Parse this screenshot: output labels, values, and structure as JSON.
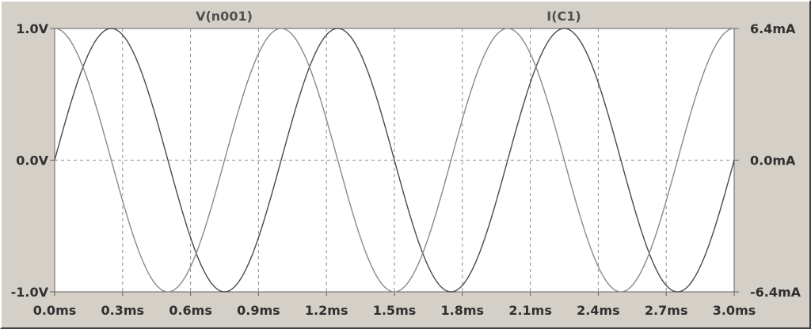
{
  "chart_data": {
    "type": "line",
    "title": "",
    "xlabel": "",
    "ylabel": "",
    "x_ticks": [
      "0.0ms",
      "0.3ms",
      "0.6ms",
      "0.9ms",
      "1.2ms",
      "1.5ms",
      "1.8ms",
      "2.1ms",
      "2.4ms",
      "2.7ms",
      "3.0ms"
    ],
    "y_left_ticks": [
      "1.0V",
      "0.0V",
      "-1.0V"
    ],
    "y_right_ticks": [
      "6.4mA",
      "0.0mA",
      "-6.4mA"
    ],
    "xlim_ms": [
      0,
      3.0
    ],
    "ylim_left_V": [
      -1.0,
      1.0
    ],
    "ylim_right_mA": [
      -6.4,
      6.4
    ],
    "grid": true,
    "series": [
      {
        "name": "V(n001)",
        "axis": "left",
        "color": "#4a4a4a",
        "points": [
          [
            0.0,
            0.0
          ],
          [
            0.125,
            0.71
          ],
          [
            0.25,
            1.0
          ],
          [
            0.375,
            0.71
          ],
          [
            0.5,
            0.0
          ],
          [
            0.625,
            -0.71
          ],
          [
            0.75,
            -1.0
          ],
          [
            0.875,
            -0.71
          ],
          [
            1.0,
            0.0
          ],
          [
            1.125,
            0.71
          ],
          [
            1.25,
            1.0
          ],
          [
            1.375,
            0.71
          ],
          [
            1.5,
            0.0
          ],
          [
            1.625,
            -0.71
          ],
          [
            1.75,
            -1.0
          ],
          [
            1.875,
            -0.71
          ],
          [
            2.0,
            0.0
          ],
          [
            2.125,
            0.71
          ],
          [
            2.25,
            1.0
          ],
          [
            2.375,
            0.71
          ],
          [
            2.5,
            0.0
          ],
          [
            2.625,
            -0.71
          ],
          [
            2.75,
            -1.0
          ],
          [
            2.875,
            -0.71
          ],
          [
            3.0,
            0.0
          ]
        ]
      },
      {
        "name": "I(C1)",
        "axis": "right",
        "color": "#8a8a8a",
        "points": [
          [
            0.0,
            6.4
          ],
          [
            0.125,
            4.53
          ],
          [
            0.25,
            0.0
          ],
          [
            0.375,
            -4.53
          ],
          [
            0.5,
            -6.4
          ],
          [
            0.625,
            -4.53
          ],
          [
            0.75,
            0.0
          ],
          [
            0.875,
            4.53
          ],
          [
            1.0,
            6.4
          ],
          [
            1.125,
            4.53
          ],
          [
            1.25,
            0.0
          ],
          [
            1.375,
            -4.53
          ],
          [
            1.5,
            -6.4
          ],
          [
            1.625,
            -4.53
          ],
          [
            1.75,
            0.0
          ],
          [
            1.875,
            4.53
          ],
          [
            2.0,
            6.4
          ],
          [
            2.125,
            4.53
          ],
          [
            2.25,
            0.0
          ],
          [
            2.375,
            -4.53
          ],
          [
            2.5,
            -6.4
          ],
          [
            2.625,
            -4.53
          ],
          [
            2.75,
            0.0
          ],
          [
            2.875,
            4.53
          ],
          [
            3.0,
            6.4
          ]
        ]
      }
    ]
  }
}
